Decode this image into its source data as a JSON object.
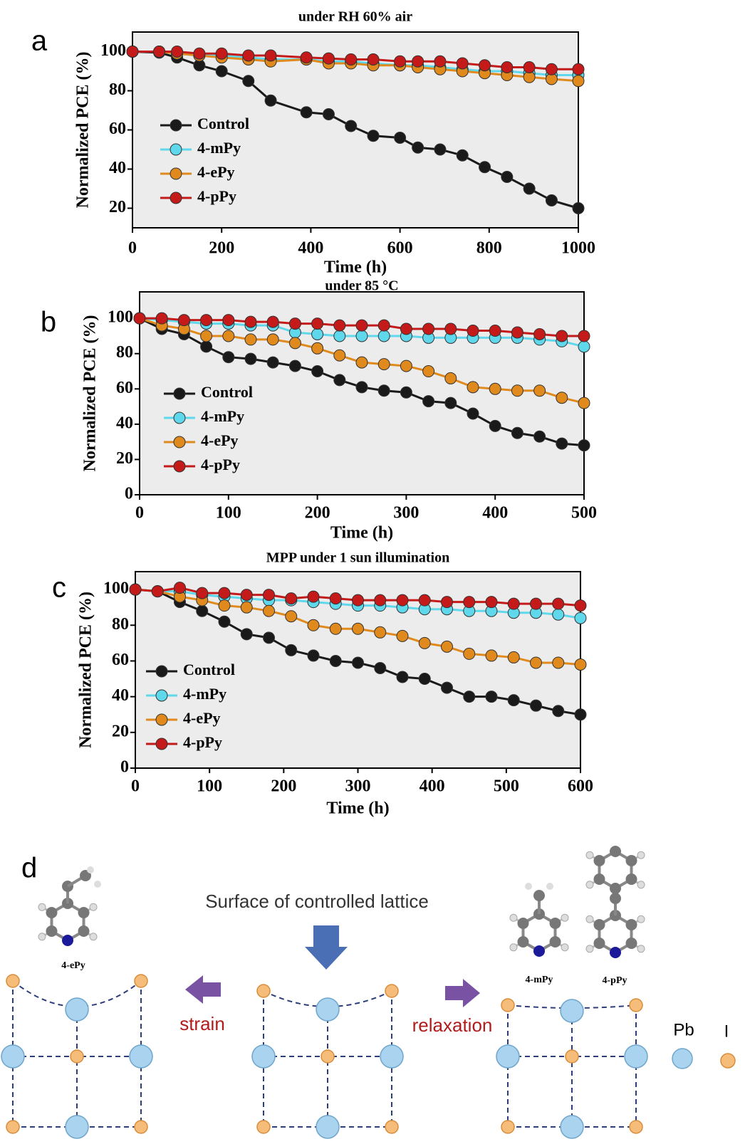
{
  "chart_data": [
    {
      "type": "line",
      "panel": "a",
      "title": "under RH 60% air",
      "x_label": "Time (h)",
      "y_label": "Normalized PCE (%)",
      "x": [
        0,
        60,
        100,
        150,
        200,
        260,
        310,
        390,
        440,
        490,
        540,
        600,
        640,
        690,
        740,
        790,
        840,
        890,
        940,
        1000
      ],
      "xlim": [
        0,
        1000
      ],
      "xticks": [
        0,
        200,
        400,
        600,
        800,
        1000
      ],
      "ylim": [
        10,
        110
      ],
      "yticks": [
        20,
        40,
        60,
        80,
        100
      ],
      "series": [
        {
          "name": "Control",
          "color": "#1a1a1a",
          "values": [
            100,
            99.5,
            97,
            93,
            90,
            85,
            75,
            69,
            68,
            62,
            57,
            56,
            51,
            50,
            47,
            41,
            36,
            30,
            24,
            20
          ]
        },
        {
          "name": "4-mPy",
          "color": "#5fd8ec",
          "values": [
            100,
            100,
            99,
            98,
            98,
            97,
            96,
            96,
            95,
            95,
            94,
            93,
            93,
            92,
            91,
            90,
            90,
            89,
            88,
            88
          ]
        },
        {
          "name": "4-ePy",
          "color": "#e08a1e",
          "values": [
            100,
            100,
            99,
            98,
            97,
            96,
            95,
            96,
            94,
            94,
            93,
            93,
            92,
            91,
            90,
            89,
            88,
            87,
            86,
            85
          ]
        },
        {
          "name": "4-pPy",
          "color": "#c41a1a",
          "values": [
            100,
            100,
            100,
            99,
            99,
            98,
            98,
            97,
            96.5,
            96,
            96,
            95,
            95,
            95,
            94,
            93,
            92,
            92,
            91,
            91
          ]
        }
      ]
    },
    {
      "type": "line",
      "panel": "b",
      "title": "under 85 °C",
      "x_label": "Time (h)",
      "y_label": "Normalized PCE (%)",
      "x": [
        0,
        25,
        50,
        75,
        100,
        125,
        150,
        175,
        200,
        225,
        250,
        275,
        300,
        325,
        350,
        375,
        400,
        425,
        450,
        475,
        500
      ],
      "xlim": [
        0,
        500
      ],
      "xticks": [
        0,
        100,
        200,
        300,
        400,
        500
      ],
      "ylim": [
        0,
        115
      ],
      "yticks": [
        0,
        20,
        40,
        60,
        80,
        100
      ],
      "series": [
        {
          "name": "Control",
          "color": "#1a1a1a",
          "values": [
            100,
            94,
            91,
            84,
            78,
            77,
            75,
            73,
            70,
            65,
            61,
            59,
            58,
            53,
            52,
            46,
            39,
            35,
            33,
            29,
            28
          ]
        },
        {
          "name": "4-mPy",
          "color": "#5fd8ec",
          "values": [
            100,
            99,
            98,
            97,
            97,
            96,
            96,
            92,
            91,
            90,
            90,
            90,
            90,
            89,
            89,
            89,
            89,
            89,
            88,
            87,
            84
          ]
        },
        {
          "name": "4-ePy",
          "color": "#e08a1e",
          "values": [
            100,
            96,
            94,
            90,
            90,
            88,
            88,
            86,
            83,
            79,
            75,
            74,
            73,
            70,
            66,
            61,
            60,
            59,
            59,
            55,
            52
          ]
        },
        {
          "name": "4-pPy",
          "color": "#c41a1a",
          "values": [
            100,
            100,
            99,
            99,
            99,
            98,
            98,
            97,
            97,
            96,
            96,
            96,
            94,
            94,
            94,
            93,
            93,
            92,
            91,
            90,
            90
          ]
        }
      ]
    },
    {
      "type": "line",
      "panel": "c",
      "title": "MPP under 1 sun illumination",
      "x_label": "Time (h)",
      "y_label": "Normalized PCE (%)",
      "x": [
        0,
        30,
        60,
        90,
        120,
        150,
        180,
        210,
        240,
        270,
        300,
        330,
        360,
        390,
        420,
        450,
        480,
        510,
        540,
        570,
        600
      ],
      "xlim": [
        0,
        600
      ],
      "xticks": [
        0,
        100,
        200,
        300,
        400,
        500,
        600
      ],
      "ylim": [
        0,
        110
      ],
      "yticks": [
        0,
        20,
        40,
        60,
        80,
        100
      ],
      "series": [
        {
          "name": "Control",
          "color": "#1a1a1a",
          "values": [
            100,
            99,
            93,
            88,
            82,
            75,
            73,
            66,
            63,
            60,
            59,
            56,
            51,
            50,
            45,
            40,
            40,
            38,
            35,
            32,
            30
          ]
        },
        {
          "name": "4-mPy",
          "color": "#5fd8ec",
          "values": [
            100,
            99,
            99,
            97,
            96,
            95,
            94,
            94,
            93,
            92,
            91,
            91,
            90,
            89,
            89,
            88,
            88,
            87,
            87,
            86,
            84
          ]
        },
        {
          "name": "4-ePy",
          "color": "#e08a1e",
          "values": [
            100,
            99,
            96,
            94,
            91,
            90,
            88,
            85,
            80,
            78,
            78,
            76,
            74,
            70,
            68,
            64,
            63,
            62,
            59,
            59,
            58
          ]
        },
        {
          "name": "4-pPy",
          "color": "#c41a1a",
          "values": [
            100,
            99,
            101,
            98,
            98,
            97,
            97,
            95,
            96,
            95,
            94,
            94,
            94,
            94,
            93,
            93,
            93,
            92,
            92,
            92,
            91
          ]
        }
      ]
    }
  ],
  "diagram": {
    "panel": "d",
    "title": "Surface of controlled lattice",
    "left_molecule": "4-ePy",
    "left_arrow": "strain",
    "right_arrow": "relaxation",
    "right_molecules": [
      "4-mPy",
      "4-pPy"
    ],
    "legend": [
      "Pb",
      "I"
    ]
  }
}
